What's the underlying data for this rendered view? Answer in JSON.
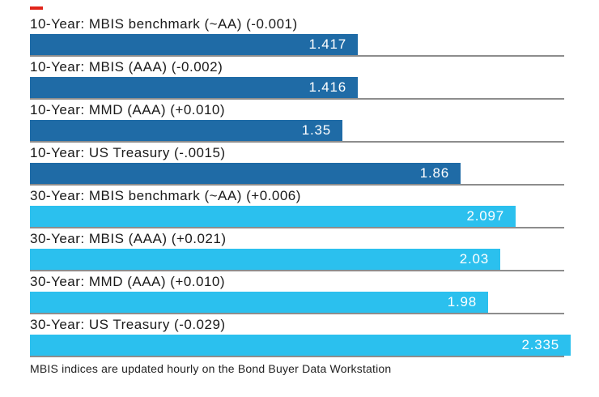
{
  "colors": {
    "bar_10_year": "#1f6ba6",
    "bar_30_year": "#2bc0ee",
    "rule": "#8d8d8d",
    "label_text": "#1a1a1a",
    "value_text": "#ffffff",
    "accent_dash": "#e1251b",
    "footnote_text": "#222222",
    "background": "#ffffff"
  },
  "chart_data": {
    "type": "bar",
    "orientation": "horizontal",
    "title": "",
    "footnote": "MBIS indices are updated hourly on the Bond Buyer Data Workstation",
    "value_axis_min": 0,
    "value_axis_max": 2.335,
    "grid": "off",
    "legend": "none",
    "categories": [
      "10-Year: MBIS benchmark (~AA) (-0.001)",
      "10-Year: MBIS (AAA) (-0.002)",
      "10-Year: MMD (AAA) (+0.010)",
      "10-Year: US Treasury (-.0015)",
      "30-Year: MBIS benchmark (~AA) (+0.006)",
      "30-Year: MBIS (AAA) (+0.021)",
      "30-Year: MMD (AAA) (+0.010)",
      "30-Year: US Treasury (-0.029)"
    ],
    "values": [
      1.417,
      1.416,
      1.35,
      1.86,
      2.097,
      2.03,
      1.98,
      2.335
    ],
    "rows": [
      {
        "label": "10-Year: MBIS benchmark (~AA) (-0.001)",
        "value": 1.417,
        "value_label": "1.417",
        "group": "10-year"
      },
      {
        "label": "10-Year: MBIS (AAA) (-0.002)",
        "value": 1.416,
        "value_label": "1.416",
        "group": "10-year"
      },
      {
        "label": "10-Year: MMD (AAA) (+0.010)",
        "value": 1.35,
        "value_label": "1.35",
        "group": "10-year"
      },
      {
        "label": "10-Year: US Treasury (-.0015)",
        "value": 1.86,
        "value_label": "1.86",
        "group": "10-year"
      },
      {
        "label": "30-Year: MBIS benchmark (~AA) (+0.006)",
        "value": 2.097,
        "value_label": "2.097",
        "group": "30-year"
      },
      {
        "label": "30-Year: MBIS (AAA) (+0.021)",
        "value": 2.03,
        "value_label": "2.03",
        "group": "30-year"
      },
      {
        "label": "30-Year: MMD (AAA) (+0.010)",
        "value": 1.98,
        "value_label": "1.98",
        "group": "30-year"
      },
      {
        "label": "30-Year: US Treasury (-0.029)",
        "value": 2.335,
        "value_label": "2.335",
        "group": "30-year"
      }
    ]
  }
}
